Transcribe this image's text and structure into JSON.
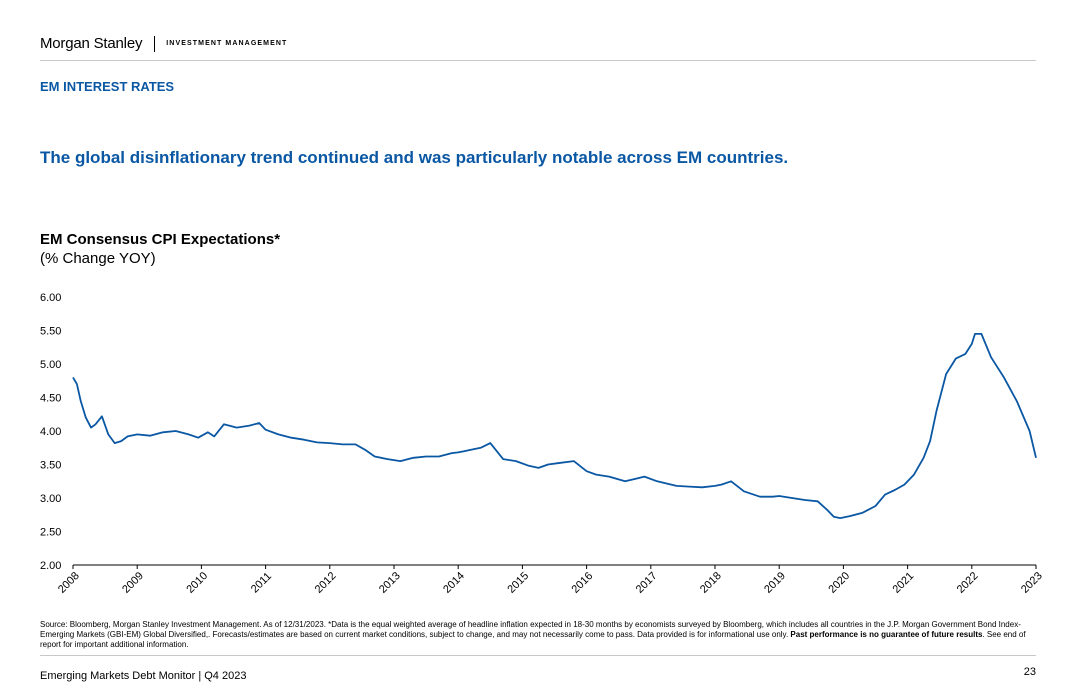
{
  "header": {
    "brand": "Morgan Stanley",
    "division": "INVESTMENT MANAGEMENT"
  },
  "section_title": "EM INTEREST RATES",
  "headline": "The global disinflationary trend continued and was particularly notable across EM countries.",
  "chart_heading": {
    "title": "EM Consensus CPI Expectations*",
    "subtitle": "(% Change YOY)"
  },
  "source": {
    "text_before": "Source: Bloomberg, Morgan Stanley Investment Management. As of 12/31/2023. *Data is the equal weighted average of headline inflation expected in 18-30 months by economists surveyed by Bloomberg, which includes all countries in the J.P. Morgan Government Bond Index-Emerging Markets (GBI-EM) Global Diversified,. Forecasts/estimates are based on current market conditions, subject to change, and may not necessarily come to pass. Data provided is for informational use only. ",
    "bold": "Past performance is no guarantee of future results",
    "text_after": ". See end of report for important additional information."
  },
  "footer": {
    "label": "Emerging Markets Debt Monitor | Q4 2023",
    "page": "23"
  },
  "colors": {
    "accent": "#0a57a4",
    "line": "#0a57a4"
  },
  "chart_data": {
    "type": "line",
    "title": "EM Consensus CPI Expectations*",
    "ylabel": "% Change YOY",
    "ylim": [
      2.0,
      6.0
    ],
    "yticks": [
      "2.00",
      "2.50",
      "3.00",
      "3.50",
      "4.00",
      "4.50",
      "5.00",
      "5.50",
      "6.00"
    ],
    "xlim": [
      2008,
      2023
    ],
    "xticks": [
      "2008",
      "2009",
      "2010",
      "2011",
      "2012",
      "2013",
      "2014",
      "2015",
      "2016",
      "2017",
      "2018",
      "2019",
      "2020",
      "2021",
      "2022",
      "2023"
    ],
    "series": [
      {
        "name": "EM Consensus CPI Expectations",
        "x": [
          2008.0,
          2008.06,
          2008.12,
          2008.2,
          2008.28,
          2008.35,
          2008.45,
          2008.55,
          2008.65,
          2008.75,
          2008.85,
          2009.0,
          2009.2,
          2009.4,
          2009.6,
          2009.8,
          2009.95,
          2010.1,
          2010.2,
          2010.35,
          2010.55,
          2010.75,
          2010.9,
          2011.0,
          2011.2,
          2011.4,
          2011.6,
          2011.8,
          2012.0,
          2012.2,
          2012.4,
          2012.55,
          2012.7,
          2012.9,
          2013.1,
          2013.3,
          2013.5,
          2013.7,
          2013.9,
          2014.0,
          2014.1,
          2014.2,
          2014.35,
          2014.5,
          2014.7,
          2014.9,
          2015.1,
          2015.25,
          2015.4,
          2015.55,
          2015.8,
          2016.0,
          2016.15,
          2016.35,
          2016.6,
          2016.9,
          2017.1,
          2017.4,
          2017.6,
          2017.8,
          2018.0,
          2018.1,
          2018.25,
          2018.45,
          2018.7,
          2018.9,
          2019.0,
          2019.2,
          2019.4,
          2019.6,
          2019.75,
          2019.85,
          2019.95,
          2020.1,
          2020.3,
          2020.5,
          2020.65,
          2020.8,
          2020.95,
          2021.1,
          2021.25,
          2021.35,
          2021.45,
          2021.6,
          2021.75,
          2021.9,
          2022.0,
          2022.05,
          2022.15,
          2022.3,
          2022.5,
          2022.7,
          2022.9,
          2023.0
        ],
        "y": [
          4.8,
          4.7,
          4.45,
          4.2,
          4.05,
          4.1,
          4.22,
          3.95,
          3.82,
          3.85,
          3.92,
          3.95,
          3.93,
          3.98,
          4.0,
          3.95,
          3.9,
          3.98,
          3.92,
          4.1,
          4.05,
          4.08,
          4.12,
          4.02,
          3.95,
          3.9,
          3.87,
          3.83,
          3.82,
          3.8,
          3.8,
          3.72,
          3.62,
          3.58,
          3.55,
          3.6,
          3.62,
          3.62,
          3.67,
          3.68,
          3.7,
          3.72,
          3.75,
          3.82,
          3.58,
          3.55,
          3.48,
          3.45,
          3.5,
          3.52,
          3.55,
          3.4,
          3.35,
          3.32,
          3.25,
          3.32,
          3.25,
          3.18,
          3.17,
          3.16,
          3.18,
          3.2,
          3.25,
          3.1,
          3.02,
          3.02,
          3.03,
          3.0,
          2.97,
          2.95,
          2.82,
          2.72,
          2.7,
          2.73,
          2.78,
          2.88,
          3.05,
          3.12,
          3.2,
          3.35,
          3.6,
          3.85,
          4.3,
          4.85,
          5.08,
          5.15,
          5.3,
          5.45,
          5.45,
          5.1,
          4.8,
          4.45,
          4.0,
          3.6
        ]
      }
    ]
  }
}
